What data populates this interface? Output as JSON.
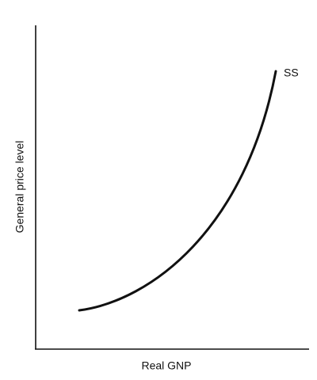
{
  "diagram": {
    "y_axis_label": "General price level",
    "x_axis_label": "Real GNP",
    "curve_label": "SS"
  }
}
